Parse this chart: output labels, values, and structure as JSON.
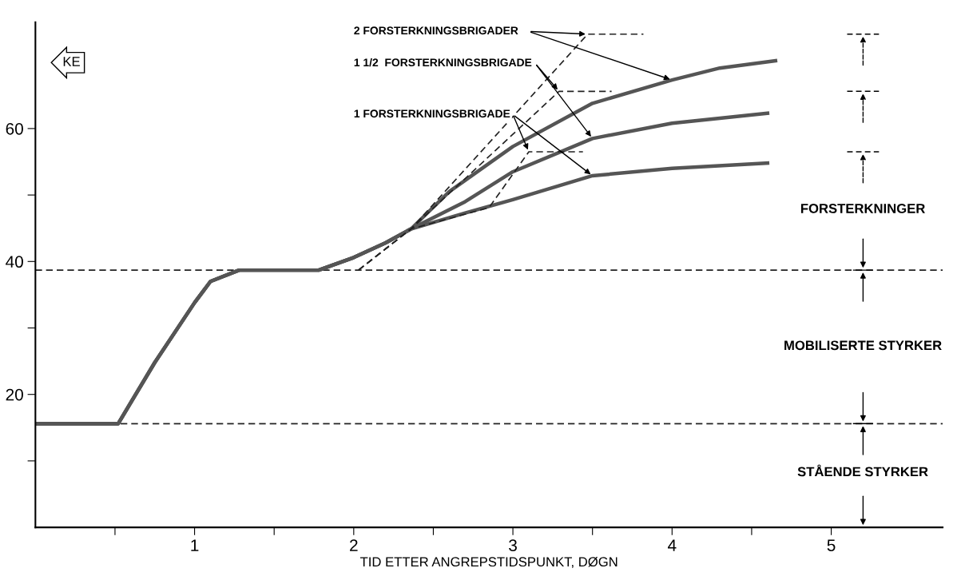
{
  "chart_data": {
    "type": "line",
    "ylabel": "KE",
    "xlabel": "TID ETTER ANGREPSTIDSPUNKT, DØGN",
    "xlim": [
      0,
      5.7
    ],
    "ylim": [
      0,
      76
    ],
    "xticks": [
      {
        "value": 0.5,
        "label": null
      },
      1,
      {
        "value": 1.5,
        "label": null
      },
      2,
      {
        "value": 2.5,
        "label": null
      },
      3,
      {
        "value": 3.5,
        "label": null
      },
      4,
      {
        "value": 4.5,
        "label": null
      },
      5
    ],
    "yticks": [
      {
        "value": 10,
        "label": null
      },
      20,
      {
        "value": 30,
        "label": null
      },
      40,
      {
        "value": 50,
        "label": null
      },
      60
    ],
    "grid": false,
    "legend": false,
    "marker": "none",
    "line_style": "solid",
    "series": [
      {
        "name": "2 FORSTERKNINGSBRIGADER",
        "color": "#555555",
        "x": [
          0,
          0.5,
          0.52,
          0.75,
          1.0,
          1.1,
          1.28,
          1.78,
          2.0,
          2.2,
          2.36,
          2.6,
          3.0,
          3.5,
          4.0,
          4.3,
          4.65
        ],
        "values": [
          15.6,
          15.6,
          15.6,
          24.8,
          33.8,
          37.0,
          38.7,
          38.7,
          40.6,
          42.8,
          44.9,
          50.5,
          57.3,
          63.8,
          67.3,
          69.1,
          70.2
        ]
      },
      {
        "name": "1 1/2  FORSTERKNINGSBRIGADE",
        "color": "#555555",
        "x": [
          0,
          0.5,
          0.52,
          0.75,
          1.0,
          1.1,
          1.28,
          1.78,
          2.0,
          2.2,
          2.36,
          2.7,
          3.0,
          3.5,
          4.0,
          4.6
        ],
        "values": [
          15.6,
          15.6,
          15.6,
          24.8,
          33.8,
          37.0,
          38.7,
          38.7,
          40.6,
          42.8,
          44.9,
          49.0,
          53.5,
          58.5,
          60.8,
          62.3
        ]
      },
      {
        "name": "1 FORSTERKNINGSBRIGADE",
        "color": "#555555",
        "x": [
          0,
          0.5,
          0.52,
          0.75,
          1.0,
          1.1,
          1.28,
          1.78,
          2.0,
          2.2,
          2.36,
          2.7,
          3.0,
          3.5,
          4.0,
          4.6
        ],
        "values": [
          15.6,
          15.6,
          15.6,
          24.8,
          33.8,
          37.0,
          38.7,
          38.7,
          40.6,
          42.8,
          44.9,
          47.3,
          49.3,
          52.9,
          54.0,
          54.8
        ]
      },
      {
        "color": "#222222",
        "line_style": "dashed",
        "x": [
          2.03,
          2.36,
          3.47,
          3.82
        ],
        "values": [
          38.7,
          44.9,
          74.2,
          74.2
        ]
      },
      {
        "color": "#222222",
        "line_style": "dashed",
        "x": [
          2.03,
          2.36,
          3.29,
          3.62
        ],
        "values": [
          38.7,
          44.9,
          65.6,
          65.6
        ]
      },
      {
        "color": "#222222",
        "line_style": "dashed",
        "x": [
          2.03,
          2.36,
          2.85,
          3.1,
          3.44
        ],
        "values": [
          38.7,
          44.9,
          48.1,
          56.5,
          56.5
        ]
      }
    ],
    "ref_lines": [
      {
        "axis": "y",
        "value": 38.7,
        "color": "#222222",
        "line_style": "dashed"
      },
      {
        "axis": "y",
        "value": 15.6,
        "color": "#222222",
        "line_style": "dashed"
      }
    ],
    "annotations": [
      "FORSTERKNINGER",
      "MOBILISERTE STYRKER",
      "STÅENDE STYRKER"
    ]
  }
}
